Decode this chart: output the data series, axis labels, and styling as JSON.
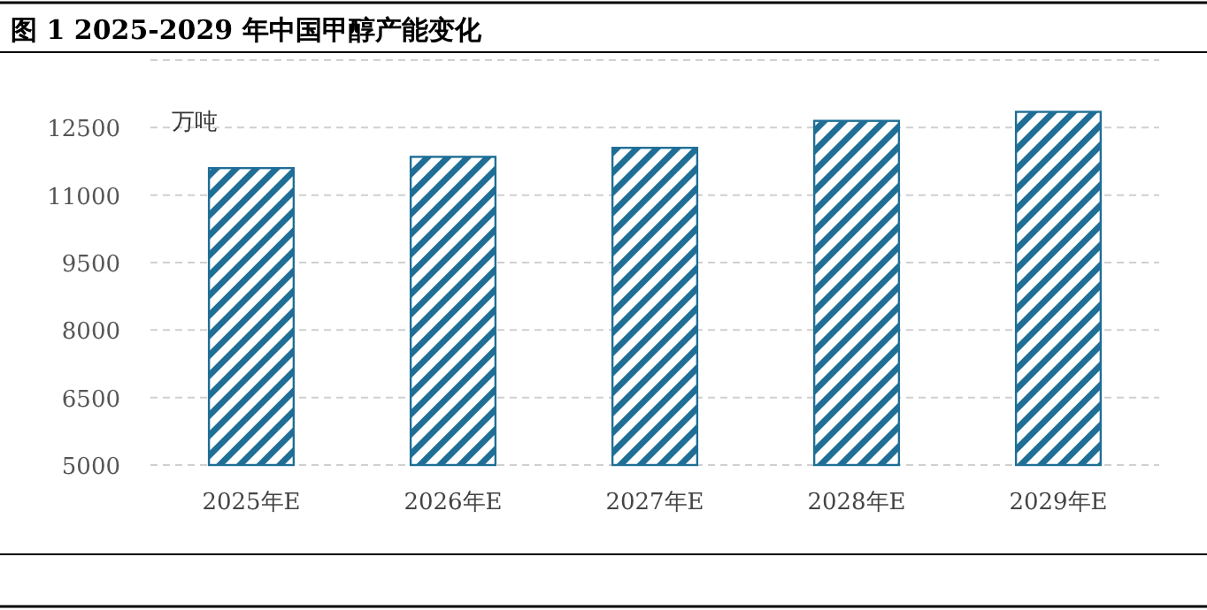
{
  "chart_data": {
    "type": "bar",
    "title": "图 1 2025-2029 年中国甲醇产能变化",
    "ylabel": "万吨",
    "categories": [
      "2025年E",
      "2026年E",
      "2027年E",
      "2028年E",
      "2029年E"
    ],
    "values": [
      11600,
      11850,
      12050,
      12650,
      12850
    ],
    "color": "#1f6e96",
    "ylim": [
      5000,
      14000
    ],
    "yticks": [
      5000,
      6500,
      8000,
      9500,
      11000,
      12500,
      {
        "value": 14000,
        "label": null
      }
    ],
    "grid": "y"
  }
}
